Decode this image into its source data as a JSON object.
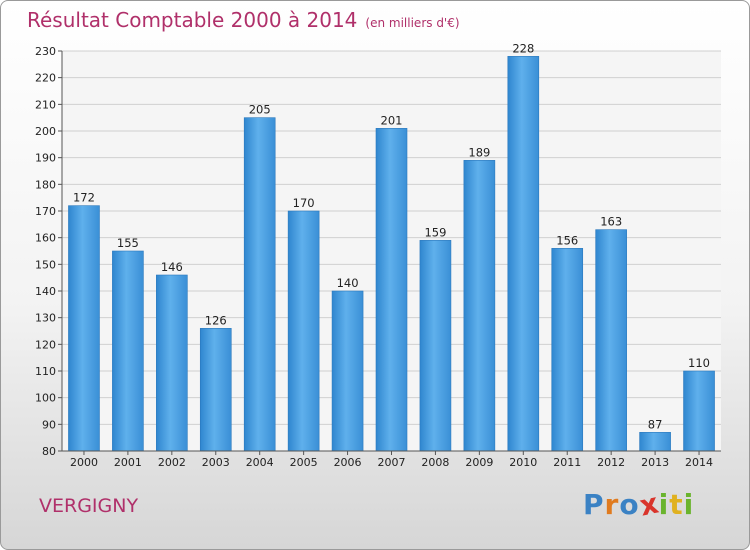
{
  "header": {
    "title": "Résultat Comptable 2000 à 2014",
    "subtitle": "(en milliers d'€)"
  },
  "footer": {
    "commune": "VERGIGNY",
    "logo_letters": [
      "P",
      "r",
      "o",
      "x",
      "i",
      "t",
      "i"
    ],
    "logo_colors": [
      "#3b82c4",
      "#e07b1f",
      "#3b82c4",
      "#d9342b",
      "#6ab42d",
      "#e0b11f",
      "#6ab42d"
    ]
  },
  "chart_data": {
    "type": "bar",
    "title": "Résultat Comptable 2000 à 2014",
    "units": "(en milliers d'€)",
    "categories": [
      "2000",
      "2001",
      "2002",
      "2003",
      "2004",
      "2005",
      "2006",
      "2007",
      "2008",
      "2009",
      "2010",
      "2011",
      "2012",
      "2013",
      "2014"
    ],
    "values": [
      172,
      155,
      146,
      126,
      205,
      170,
      140,
      201,
      159,
      189,
      228,
      156,
      163,
      87,
      110
    ],
    "ylim": [
      80,
      230
    ],
    "yticks": [
      80,
      90,
      100,
      110,
      120,
      130,
      140,
      150,
      160,
      170,
      180,
      190,
      200,
      210,
      220,
      230
    ],
    "grid": true,
    "bar_color": "#4a9fe0"
  }
}
